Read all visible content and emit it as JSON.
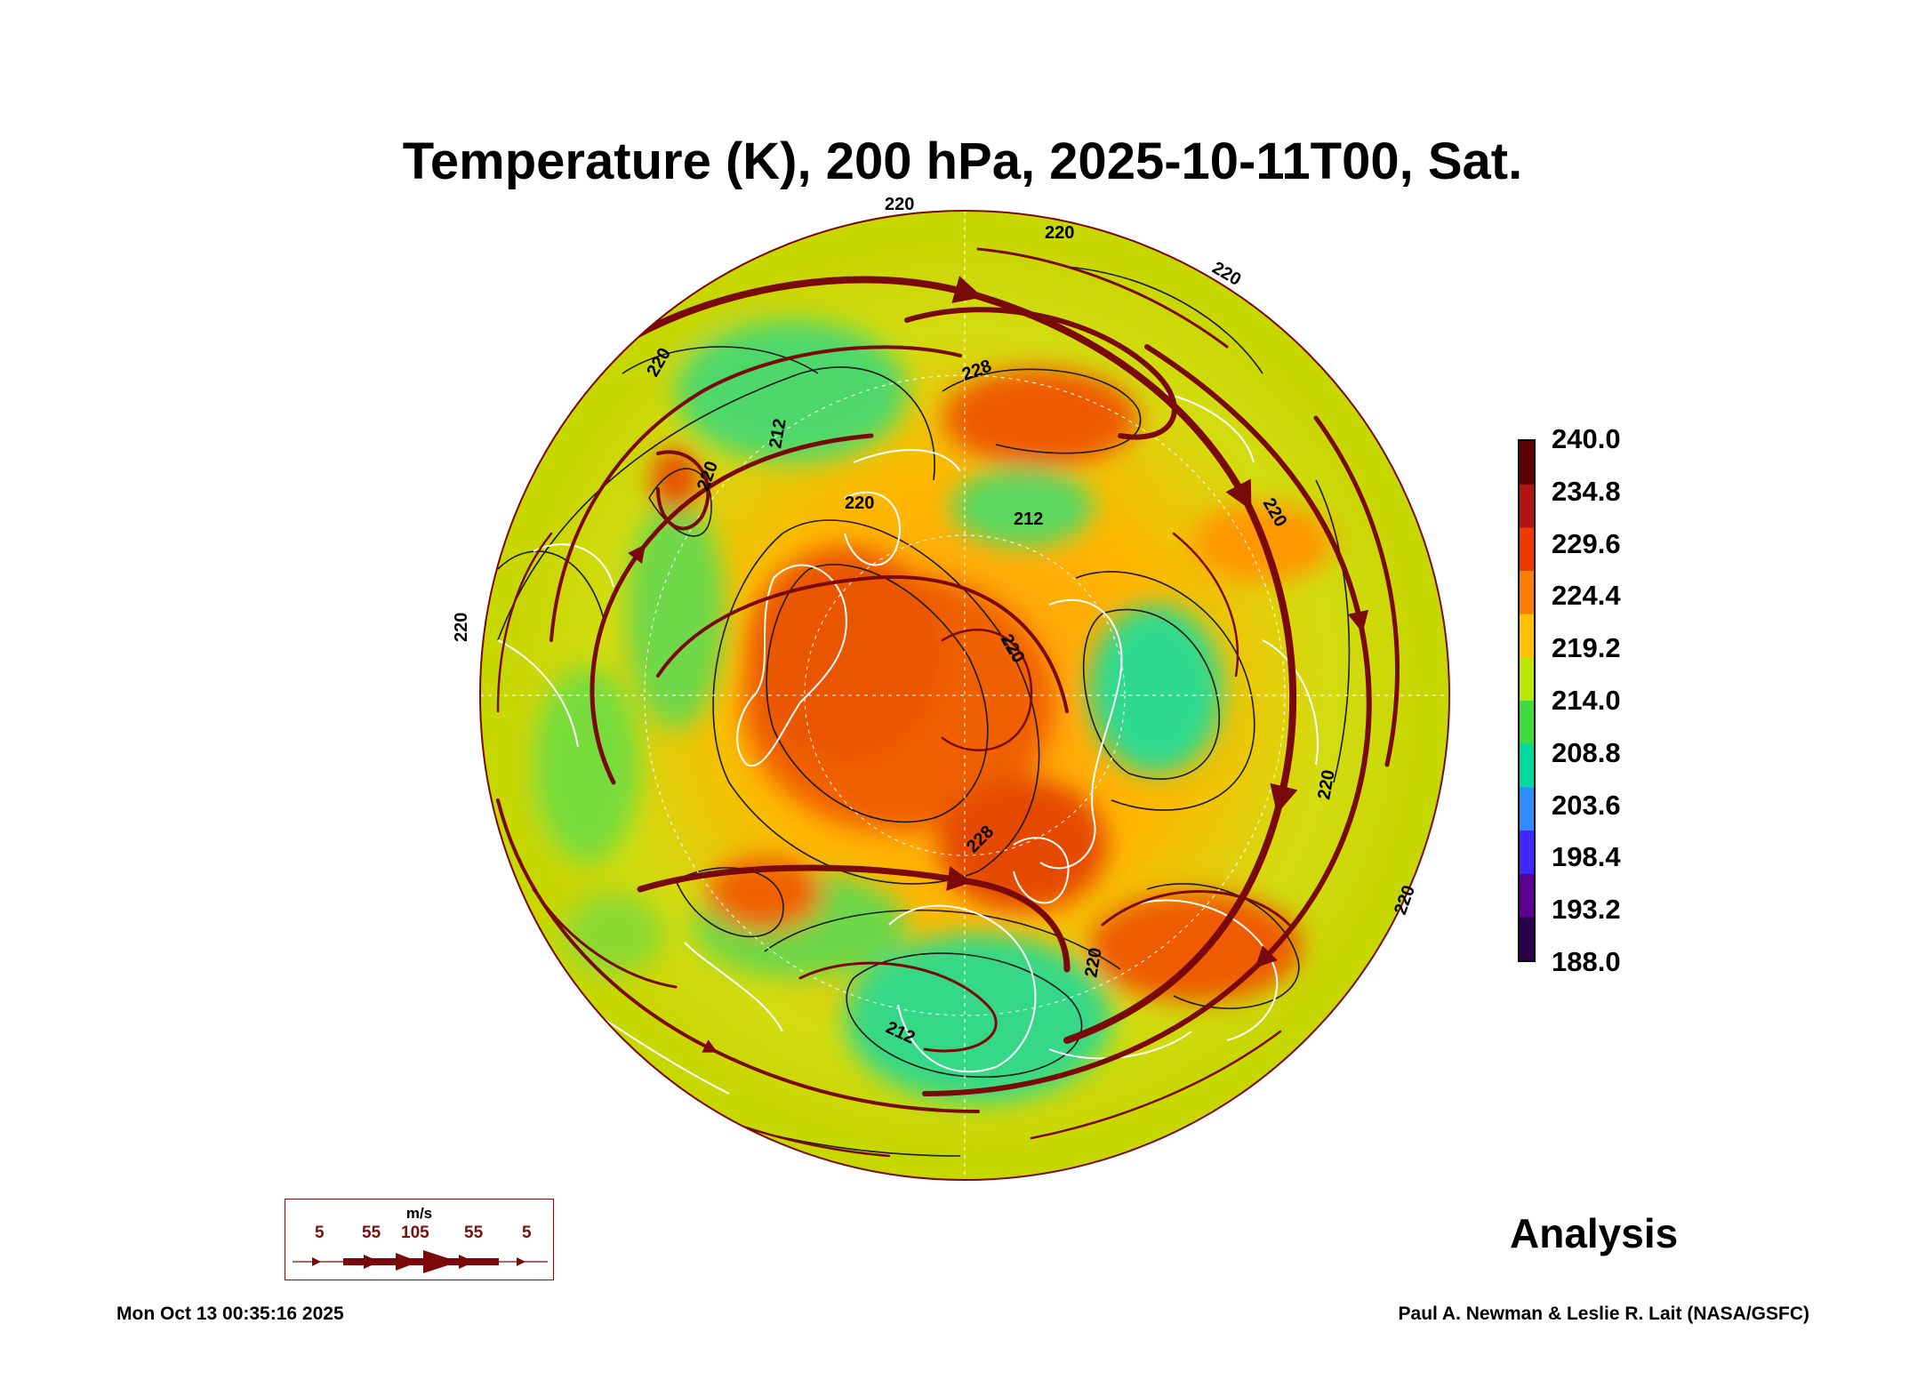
{
  "title": "Temperature (K), 200 hPa, 2025-10-11T00, Sat.",
  "colorbar": {
    "labels": [
      "240.0",
      "234.8",
      "229.6",
      "224.4",
      "219.2",
      "214.0",
      "208.8",
      "203.6",
      "198.4",
      "193.2",
      "188.0"
    ],
    "colors": [
      "#5a0000",
      "#b31313",
      "#ee3a00",
      "#ff7d00",
      "#ffc300",
      "#bfe600",
      "#3fdc3f",
      "#00d9a0",
      "#2f8cff",
      "#3f29ff",
      "#5b0090",
      "#2a004a"
    ]
  },
  "contour_labels": [
    "220",
    "220",
    "220",
    "220",
    "220",
    "220",
    "220",
    "220",
    "220",
    "212",
    "212",
    "228",
    "228",
    "220",
    "220",
    "212",
    "220"
  ],
  "wind_legend": {
    "unit": "m/s",
    "ticks": [
      "5",
      "55",
      "105",
      "55",
      "5"
    ]
  },
  "analysis_label": "Analysis",
  "footer": {
    "timestamp": "Mon Oct 13 00:35:16 2025",
    "credit": "Paul A. Newman & Leslie R. Lait (NASA/GSFC)"
  },
  "colors": {
    "streamline": "#7a0a0a",
    "coastline": "#ffffff",
    "contour": "#1a1a1a"
  }
}
